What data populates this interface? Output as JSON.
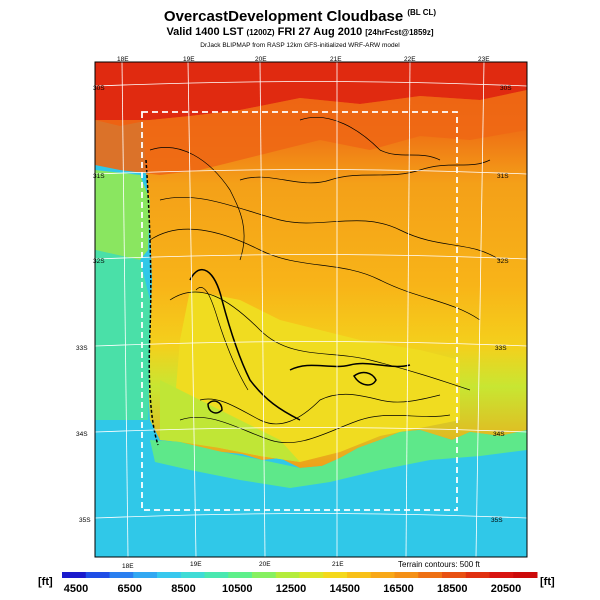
{
  "header": {
    "title": "OvercastDevelopment Cloudbase",
    "title_suffix": "(BL CL)",
    "subtitle_main": "Valid 1400 LST",
    "subtitle_z": "(1200Z)",
    "subtitle_date": "FRI 27 Aug 2010",
    "subtitle_fcst": "[24hrFcst@1859z]",
    "credit": "DrJack BLIPMAP from RASP 12km GFS-initialized WRF-ARW model"
  },
  "map": {
    "lon_labels_top": [
      "18E",
      "19E",
      "20E",
      "21E",
      "22E",
      "23E"
    ],
    "lon_labels_bottom": [
      "18E",
      "19E",
      "20E",
      "21E"
    ],
    "lat_labels_left": [
      "30S",
      "31S",
      "32S",
      "33S",
      "34S",
      "35S"
    ],
    "lat_labels_right": [
      "30S",
      "31S",
      "32S",
      "33S",
      "34S",
      "35S"
    ],
    "terrain_note": "Terrain contours: 500 ft"
  },
  "colorbar": {
    "unit_left": "[ft]",
    "unit_right": "[ft]",
    "tick_labels": [
      "4500",
      "6500",
      "8500",
      "10500",
      "12500",
      "14500",
      "16500",
      "18500",
      "20500"
    ],
    "colors": [
      "#1a1acc",
      "#1f4ee6",
      "#2a7ff0",
      "#32a8f2",
      "#38c8ee",
      "#3fdcd6",
      "#4ae8b0",
      "#5ef08a",
      "#86f060",
      "#b4ec3c",
      "#dce628",
      "#f4d81c",
      "#f8c018",
      "#f8a818",
      "#f49016",
      "#ee7014",
      "#e85012",
      "#e03010",
      "#d81410",
      "#cc0a0a"
    ]
  }
}
